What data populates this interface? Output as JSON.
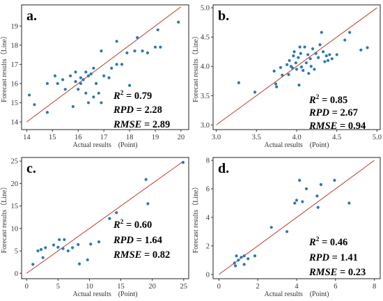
{
  "chart_data": [
    {
      "type": "scatter",
      "panel_label": "a.",
      "xlabel": "Actual results　(Point)",
      "ylabel": "Forecast results（Line）",
      "xlim": [
        13.8,
        20.3
      ],
      "ylim": [
        13.6,
        20.1
      ],
      "xticks": [
        "14",
        "15",
        "16",
        "17",
        "18",
        "19",
        "20"
      ],
      "yticks": [
        "14",
        "15",
        "16",
        "17",
        "18",
        "19"
      ],
      "reference_line": [
        [
          14,
          14
        ],
        [
          20,
          20
        ]
      ],
      "stats": {
        "r2_name": "R",
        "r2_sup": "2",
        "r2_value": " = 0.79",
        "rpd_name": "RPD",
        "rpd_value": " = 2.28",
        "rmse_name": "RMSE",
        "rmse_value": " = 2.89"
      },
      "points": [
        [
          14.1,
          15.4
        ],
        [
          14.3,
          14.9
        ],
        [
          14.8,
          16.0
        ],
        [
          14.8,
          14.5
        ],
        [
          15.1,
          16.4
        ],
        [
          15.2,
          16.0
        ],
        [
          15.4,
          16.2
        ],
        [
          15.5,
          15.7
        ],
        [
          15.7,
          16.4
        ],
        [
          15.8,
          14.8
        ],
        [
          15.9,
          16.1
        ],
        [
          15.9,
          16.6
        ],
        [
          16.0,
          15.7
        ],
        [
          16.1,
          16.3
        ],
        [
          16.1,
          16.0
        ],
        [
          16.2,
          16.2
        ],
        [
          16.3,
          15.5
        ],
        [
          16.3,
          16.6
        ],
        [
          16.4,
          16.4
        ],
        [
          16.4,
          15.0
        ],
        [
          16.5,
          16.5
        ],
        [
          16.6,
          15.3
        ],
        [
          16.6,
          16.8
        ],
        [
          16.7,
          16.0
        ],
        [
          16.8,
          15.5
        ],
        [
          16.9,
          17.7
        ],
        [
          16.9,
          15.0
        ],
        [
          17.0,
          16.4
        ],
        [
          17.2,
          16.3
        ],
        [
          17.3,
          16.8
        ],
        [
          17.5,
          18.2
        ],
        [
          17.5,
          17.0
        ],
        [
          17.7,
          17.0
        ],
        [
          17.9,
          17.6
        ],
        [
          18.0,
          15.9
        ],
        [
          18.2,
          17.7
        ],
        [
          18.3,
          18.4
        ],
        [
          18.5,
          17.7
        ],
        [
          18.7,
          17.6
        ],
        [
          19.0,
          17.9
        ],
        [
          19.1,
          18.8
        ],
        [
          19.2,
          17.9
        ],
        [
          19.9,
          19.2
        ]
      ]
    },
    {
      "type": "scatter",
      "panel_label": "b.",
      "xlabel": "Actual results　(Point)",
      "ylabel": "Forecast results（Line）",
      "xlim": [
        2.96,
        5.04
      ],
      "ylim": [
        2.92,
        5.05
      ],
      "xticks": [
        "3.0",
        "3.5",
        "4.0",
        "4.5",
        "5.0"
      ],
      "yticks": [
        "3.0",
        "3.5",
        "4.0",
        "4.5",
        "5.0"
      ],
      "reference_line": [
        [
          3,
          3
        ],
        [
          5,
          5
        ]
      ],
      "stats": {
        "r2_name": "R",
        "r2_sup": "2",
        "r2_value": " = 0.85",
        "rpd_name": "RPD",
        "rpd_value": " = 2.67",
        "rmse_name": "RMSE",
        "rmse_value": " = 0.94"
      },
      "points": [
        [
          3.28,
          3.72
        ],
        [
          3.48,
          3.56
        ],
        [
          3.72,
          3.92
        ],
        [
          3.74,
          3.7
        ],
        [
          3.75,
          3.65
        ],
        [
          3.8,
          3.98
        ],
        [
          3.82,
          3.85
        ],
        [
          3.88,
          4.03
        ],
        [
          3.9,
          3.86
        ],
        [
          3.91,
          4.1
        ],
        [
          3.93,
          4.0
        ],
        [
          3.95,
          3.97
        ],
        [
          3.96,
          4.18
        ],
        [
          3.97,
          4.25
        ],
        [
          3.99,
          4.06
        ],
        [
          4.0,
          3.95
        ],
        [
          4.02,
          4.15
        ],
        [
          4.03,
          3.68
        ],
        [
          4.04,
          4.33
        ],
        [
          4.05,
          4.22
        ],
        [
          4.06,
          3.99
        ],
        [
          4.08,
          3.93
        ],
        [
          4.1,
          4.33
        ],
        [
          4.12,
          4.06
        ],
        [
          4.14,
          4.2
        ],
        [
          4.15,
          3.88
        ],
        [
          4.17,
          4.13
        ],
        [
          4.18,
          4.0
        ],
        [
          4.2,
          4.3
        ],
        [
          4.22,
          3.95
        ],
        [
          4.24,
          4.22
        ],
        [
          4.27,
          4.15
        ],
        [
          4.29,
          4.37
        ],
        [
          4.31,
          4.58
        ],
        [
          4.33,
          4.25
        ],
        [
          4.35,
          4.08
        ],
        [
          4.37,
          4.18
        ],
        [
          4.39,
          4.1
        ],
        [
          4.41,
          4.2
        ],
        [
          4.44,
          4.13
        ],
        [
          4.5,
          4.2
        ],
        [
          4.6,
          4.45
        ],
        [
          4.66,
          4.58
        ],
        [
          4.8,
          4.28
        ],
        [
          4.88,
          4.32
        ]
      ]
    },
    {
      "type": "scatter",
      "panel_label": "c.",
      "xlabel": "Actual results　(Point)",
      "ylabel": "Forecast results（Line）",
      "xlim": [
        -0.8,
        25.8
      ],
      "ylim": [
        -1.2,
        25.8
      ],
      "xticks": [
        "0",
        "5",
        "10",
        "15",
        "20",
        "25"
      ],
      "yticks": [
        "0",
        "5",
        "10",
        "15",
        "20",
        "25"
      ],
      "reference_line": [
        [
          0,
          0
        ],
        [
          25,
          25
        ]
      ],
      "stats": {
        "r2_name": "R",
        "r2_sup": "2",
        "r2_value": " = 0.60",
        "rpd_name": "RPD",
        "rpd_value": " = 1.64",
        "rmse_name": "RMSE",
        "rmse_value": " = 0.82"
      },
      "points": [
        [
          1.0,
          2.0
        ],
        [
          1.8,
          5.0
        ],
        [
          2.3,
          5.3
        ],
        [
          2.6,
          3.5
        ],
        [
          3.0,
          5.7
        ],
        [
          4.3,
          6.3
        ],
        [
          5.0,
          5.8
        ],
        [
          5.2,
          7.5
        ],
        [
          5.8,
          5.5
        ],
        [
          6.0,
          7.5
        ],
        [
          6.6,
          5.0
        ],
        [
          7.3,
          5.7
        ],
        [
          8.2,
          6.4
        ],
        [
          8.4,
          2.1
        ],
        [
          9.7,
          3.0
        ],
        [
          10.2,
          6.5
        ],
        [
          11.5,
          7.0
        ],
        [
          13.2,
          12.2
        ],
        [
          14.3,
          13.5
        ],
        [
          19.0,
          20.9
        ],
        [
          19.3,
          15.5
        ],
        [
          24.9,
          24.7
        ]
      ]
    },
    {
      "type": "scatter",
      "panel_label": "d.",
      "xlabel": "Actual results　(Point)",
      "ylabel": "Forecast results（Line）",
      "xlim": [
        -0.3,
        8.3
      ],
      "ylim": [
        -0.3,
        8.2
      ],
      "xticks": [
        "0",
        "2",
        "4",
        "6",
        "8"
      ],
      "yticks": [
        "0",
        "2",
        "4",
        "6",
        "8"
      ],
      "reference_line": [
        [
          0,
          0
        ],
        [
          8,
          8
        ]
      ],
      "stats": {
        "r2_name": "R",
        "r2_sup": "2",
        "r2_value": " = 0.46",
        "rpd_name": "RPD",
        "rpd_value": " = 1.41",
        "rmse_name": "RMSE",
        "rmse_value": " = 0.23"
      },
      "points": [
        [
          0.8,
          0.8
        ],
        [
          0.85,
          0.6
        ],
        [
          0.9,
          1.3
        ],
        [
          1.0,
          1.0
        ],
        [
          1.15,
          1.2
        ],
        [
          1.3,
          1.3
        ],
        [
          1.3,
          0.7
        ],
        [
          1.5,
          1.1
        ],
        [
          1.85,
          1.3
        ],
        [
          2.7,
          3.3
        ],
        [
          3.5,
          3.0
        ],
        [
          3.9,
          5.0
        ],
        [
          4.0,
          5.2
        ],
        [
          4.15,
          6.6
        ],
        [
          4.3,
          5.1
        ],
        [
          4.5,
          6.0
        ],
        [
          5.05,
          5.5
        ],
        [
          5.1,
          4.7
        ],
        [
          5.25,
          6.3
        ],
        [
          5.95,
          6.6
        ],
        [
          6.7,
          5.0
        ]
      ]
    }
  ]
}
